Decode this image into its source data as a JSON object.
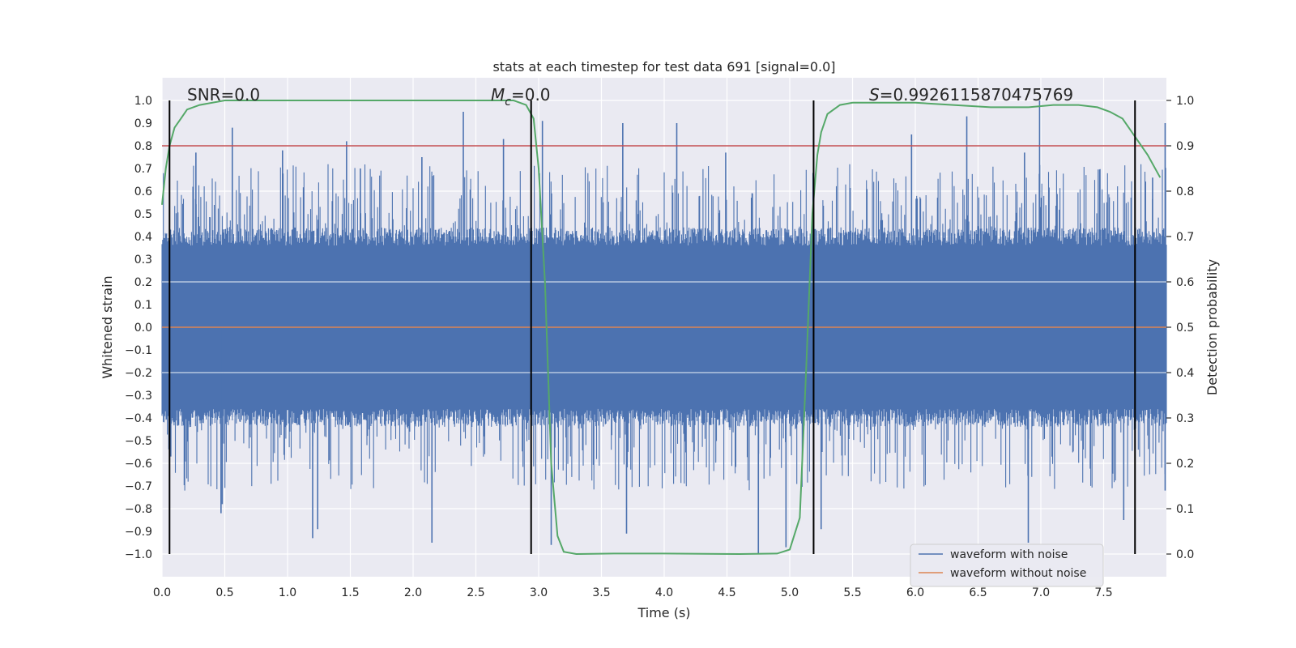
{
  "chart_data": {
    "type": "line",
    "title": "stats at each timestep for test data 691 [signal=0.0]",
    "xlabel": "Time (s)",
    "ylabel": "Whitened strain",
    "y2label": "Detection probability",
    "xlim": [
      0.0,
      8.0
    ],
    "ylim": [
      -1.1,
      1.1
    ],
    "y2lim": [
      -0.05,
      1.05
    ],
    "xticks": [
      0.0,
      0.5,
      1.0,
      1.5,
      2.0,
      2.5,
      3.0,
      3.5,
      4.0,
      4.5,
      5.0,
      5.5,
      6.0,
      6.5,
      7.0,
      7.5
    ],
    "xtick_labels": [
      "0.0",
      "0.5",
      "1.0",
      "1.5",
      "2.0",
      "2.5",
      "3.0",
      "3.5",
      "4.0",
      "4.5",
      "5.0",
      "5.5",
      "6.0",
      "6.5",
      "7.0",
      "7.5"
    ],
    "yticks": [
      1.0,
      0.9,
      0.8,
      0.7,
      0.6,
      0.5,
      0.4,
      0.3,
      0.2,
      0.1,
      0.0,
      -0.1,
      -0.2,
      -0.3,
      -0.4,
      -0.5,
      -0.6,
      -0.7,
      -0.8,
      -0.9,
      -1.0
    ],
    "ytick_labels": [
      "1.0",
      "0.9",
      "0.8",
      "0.7",
      "0.6",
      "0.5",
      "0.4",
      "0.3",
      "0.2",
      "0.1",
      "0.0",
      "−0.1",
      "−0.2",
      "−0.3",
      "−0.4",
      "−0.5",
      "−0.6",
      "−0.7",
      "−0.8",
      "−0.9",
      "−1.0"
    ],
    "y2ticks": [
      1.0,
      0.9,
      0.8,
      0.7,
      0.6,
      0.5,
      0.4,
      0.3,
      0.2,
      0.1,
      0.0
    ],
    "y2tick_labels": [
      "1.0",
      "0.9",
      "0.8",
      "0.7",
      "0.6",
      "0.5",
      "0.4",
      "0.3",
      "0.2",
      "0.1",
      "0.0"
    ],
    "annotations": {
      "snr": "SNR=0.0",
      "mc_symbol": "M",
      "mc_subscript": "c",
      "mc_value": "=0.0",
      "s_symbol": "S",
      "s_value": "=0.9926115870475769"
    },
    "vertical_lines_x": [
      0.06,
      2.94,
      5.19,
      7.75
    ],
    "threshold": {
      "y2": 0.9,
      "color": "#c44e52"
    },
    "series": [
      {
        "name": "waveform with noise",
        "axis": "left",
        "color": "#4c72b0",
        "description": "whitened strain noise, dense bars roughly ±0.4 with spikes to ±1.0",
        "spikes": [
          {
            "x": 0.27,
            "y": 0.77
          },
          {
            "x": 0.56,
            "y": 0.88
          },
          {
            "x": 0.96,
            "y": 0.78
          },
          {
            "x": 1.47,
            "y": 0.82
          },
          {
            "x": 1.58,
            "y": 0.7
          },
          {
            "x": 2.07,
            "y": 0.75
          },
          {
            "x": 2.4,
            "y": 0.95
          },
          {
            "x": 2.72,
            "y": 0.83
          },
          {
            "x": 3.03,
            "y": 0.91
          },
          {
            "x": 3.67,
            "y": 0.9
          },
          {
            "x": 4.1,
            "y": 0.9
          },
          {
            "x": 4.49,
            "y": 0.77
          },
          {
            "x": 5.97,
            "y": 0.85
          },
          {
            "x": 6.41,
            "y": 0.93
          },
          {
            "x": 6.87,
            "y": 0.77
          },
          {
            "x": 6.99,
            "y": 1.0
          },
          {
            "x": 7.89,
            "y": 0.66
          },
          {
            "x": 7.99,
            "y": 0.9
          },
          {
            "x": 0.07,
            "y": -0.57
          },
          {
            "x": 0.48,
            "y": -0.78
          },
          {
            "x": 0.47,
            "y": -0.82
          },
          {
            "x": 1.2,
            "y": -0.93
          },
          {
            "x": 1.24,
            "y": -0.89
          },
          {
            "x": 2.15,
            "y": -0.95
          },
          {
            "x": 3.1,
            "y": -0.96
          },
          {
            "x": 3.7,
            "y": -0.91
          },
          {
            "x": 4.75,
            "y": -1.0
          },
          {
            "x": 4.97,
            "y": -0.97
          },
          {
            "x": 5.25,
            "y": -0.89
          },
          {
            "x": 6.9,
            "y": -0.95
          },
          {
            "x": 7.66,
            "y": -0.85
          },
          {
            "x": 7.99,
            "y": -0.72
          }
        ]
      },
      {
        "name": "waveform without noise",
        "axis": "left",
        "color": "#dd8452",
        "x": [
          0.0,
          8.0
        ],
        "y": [
          0.0,
          0.0
        ]
      },
      {
        "name": "detection probability",
        "axis": "right",
        "color": "#55a868",
        "x": [
          0.0,
          0.03,
          0.06,
          0.1,
          0.15,
          0.2,
          0.3,
          0.5,
          1.0,
          2.0,
          2.6,
          2.8,
          2.9,
          2.96,
          3.0,
          3.05,
          3.1,
          3.15,
          3.2,
          3.3,
          3.6,
          4.0,
          4.6,
          4.9,
          5.0,
          5.08,
          5.13,
          5.18,
          5.22,
          5.25,
          5.3,
          5.4,
          5.5,
          6.0,
          6.6,
          6.9,
          7.1,
          7.3,
          7.45,
          7.55,
          7.65,
          7.75,
          7.85,
          7.95
        ],
        "y": [
          0.77,
          0.85,
          0.9,
          0.94,
          0.96,
          0.98,
          0.99,
          1.0,
          1.0,
          1.0,
          1.0,
          1.0,
          0.99,
          0.96,
          0.85,
          0.6,
          0.2,
          0.04,
          0.005,
          0.0,
          0.001,
          0.001,
          0.0,
          0.001,
          0.01,
          0.08,
          0.4,
          0.75,
          0.88,
          0.93,
          0.97,
          0.99,
          0.995,
          0.995,
          0.985,
          0.985,
          0.99,
          0.99,
          0.985,
          0.975,
          0.96,
          0.92,
          0.88,
          0.83
        ]
      }
    ],
    "legend": {
      "position": "lower-right",
      "entries": [
        {
          "label": "waveform with noise",
          "color": "#4c72b0"
        },
        {
          "label": "waveform without noise",
          "color": "#dd8452"
        }
      ]
    },
    "background": "#eaeaf2",
    "grid": true
  }
}
